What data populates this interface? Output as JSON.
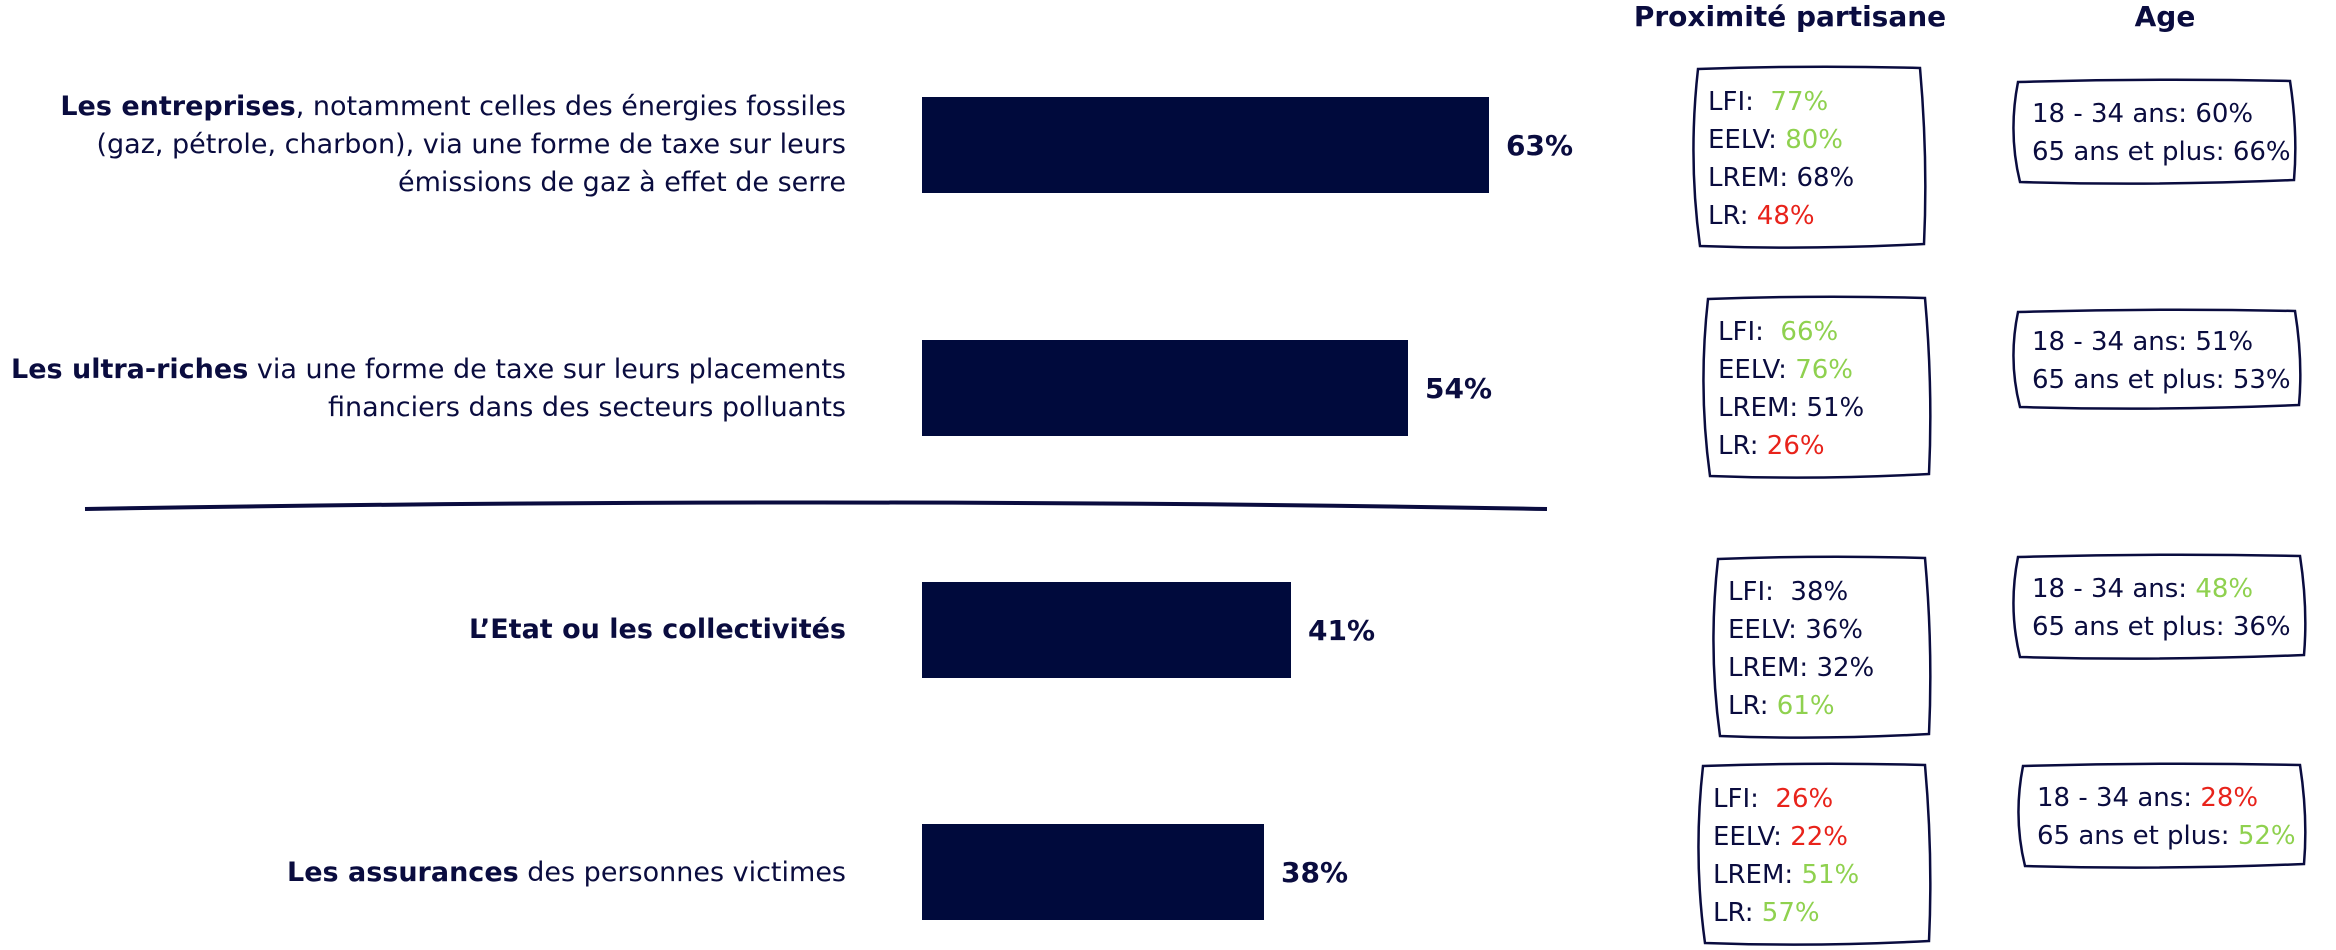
{
  "headers": {
    "party": "Proximité partisane",
    "age": "Age"
  },
  "chart_data": {
    "type": "bar",
    "orientation": "horizontal",
    "categories": [
      "Les entreprises, notamment celles des énergies fossiles (gaz, pétrole, charbon), via une forme de taxe sur leurs émissions de gaz à effet de serre",
      "Les ultra-riches via une forme de taxe sur leurs placements financiers dans des secteurs polluants",
      "L’Etat ou les collectivités",
      "Les assurances des personnes victimes"
    ],
    "values": [
      63,
      54,
      41,
      38
    ],
    "value_labels": [
      "63%",
      "54%",
      "41%",
      "38%"
    ],
    "xlim": [
      0,
      100
    ],
    "bar_color": "#000a3c",
    "divider_after_index": 1
  },
  "rows": [
    {
      "label_bold": "Les entreprises",
      "label_rest": ", notamment celles des énergies fossiles (gaz, pétrole, charbon), via une forme de taxe sur leurs émissions de gaz à effet de serre",
      "party": [
        {
          "label": "LFI:  ",
          "value": "77%",
          "tone": "green"
        },
        {
          "label": "EELV: ",
          "value": "80%",
          "tone": "green"
        },
        {
          "label": "LREM: ",
          "value": "68%",
          "tone": "neutral"
        },
        {
          "label": "LR: ",
          "value": "48%",
          "tone": "red"
        }
      ],
      "age": [
        {
          "label": "18 - 34 ans: ",
          "value": "60%",
          "tone": "neutral"
        },
        {
          "label": "65 ans et plus: ",
          "value": "66%",
          "tone": "neutral"
        }
      ]
    },
    {
      "label_bold": "Les ultra-riches",
      "label_rest": " via une forme de taxe sur leurs placements financiers dans des secteurs polluants",
      "party": [
        {
          "label": "LFI:  ",
          "value": "66%",
          "tone": "green"
        },
        {
          "label": "EELV: ",
          "value": "76%",
          "tone": "green"
        },
        {
          "label": "LREM: ",
          "value": "51%",
          "tone": "neutral"
        },
        {
          "label": "LR: ",
          "value": "26%",
          "tone": "red"
        }
      ],
      "age": [
        {
          "label": "18 - 34 ans: ",
          "value": "51%",
          "tone": "neutral"
        },
        {
          "label": "65 ans et plus: ",
          "value": "53%",
          "tone": "neutral"
        }
      ]
    },
    {
      "label_bold": "L’Etat ou les collectivités",
      "label_rest": "",
      "party": [
        {
          "label": "LFI:  ",
          "value": "38%",
          "tone": "neutral"
        },
        {
          "label": "EELV: ",
          "value": "36%",
          "tone": "neutral"
        },
        {
          "label": "LREM: ",
          "value": "32%",
          "tone": "neutral"
        },
        {
          "label": "LR: ",
          "value": "61%",
          "tone": "green"
        }
      ],
      "age": [
        {
          "label": "18 - 34 ans: ",
          "value": "48%",
          "tone": "green"
        },
        {
          "label": "65 ans et plus: ",
          "value": "36%",
          "tone": "neutral"
        }
      ]
    },
    {
      "label_bold": "Les assurances",
      "label_rest": " des personnes victimes",
      "party": [
        {
          "label": "LFI:  ",
          "value": "26%",
          "tone": "red"
        },
        {
          "label": "EELV: ",
          "value": "22%",
          "tone": "red"
        },
        {
          "label": "LREM: ",
          "value": "51%",
          "tone": "green"
        },
        {
          "label": "LR: ",
          "value": "57%",
          "tone": "green"
        }
      ],
      "age": [
        {
          "label": "18 - 34 ans: ",
          "value": "28%",
          "tone": "red"
        },
        {
          "label": "65 ans et plus: ",
          "value": "52%",
          "tone": "green"
        }
      ]
    }
  ],
  "colors": {
    "navy": "#0a0c3f",
    "green": "#8fd14f",
    "red": "#e8231b"
  }
}
